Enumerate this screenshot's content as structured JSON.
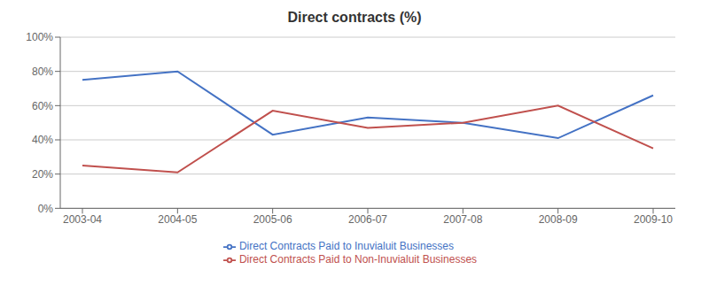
{
  "chart_data": {
    "type": "line",
    "title": "Direct contracts (%)",
    "categories": [
      "2003-04",
      "2004-05",
      "2005-06",
      "2006-07",
      "2007-08",
      "2008-09",
      "2009-10"
    ],
    "series": [
      {
        "name": "Direct Contracts Paid to Inuvialuit Businesses",
        "color": "#4472C4",
        "values": [
          0.75,
          0.8,
          0.43,
          0.53,
          0.5,
          0.41,
          0.66
        ]
      },
      {
        "name": "Direct Contracts Paid to Non-Inuvialuit Businesses",
        "color": "#C0504D",
        "values": [
          0.25,
          0.21,
          0.57,
          0.47,
          0.5,
          0.6,
          0.35
        ]
      }
    ],
    "ylim": [
      0,
      1.0
    ],
    "yticks": [
      {
        "value": 0.0,
        "label": "0%"
      },
      {
        "value": 0.2,
        "label": "20%"
      },
      {
        "value": 0.4,
        "label": "40%"
      },
      {
        "value": 0.6,
        "label": "60%"
      },
      {
        "value": 0.8,
        "label": "80%"
      },
      {
        "value": 1.0,
        "label": "100%"
      }
    ],
    "grid": true,
    "legend": "bottom"
  }
}
